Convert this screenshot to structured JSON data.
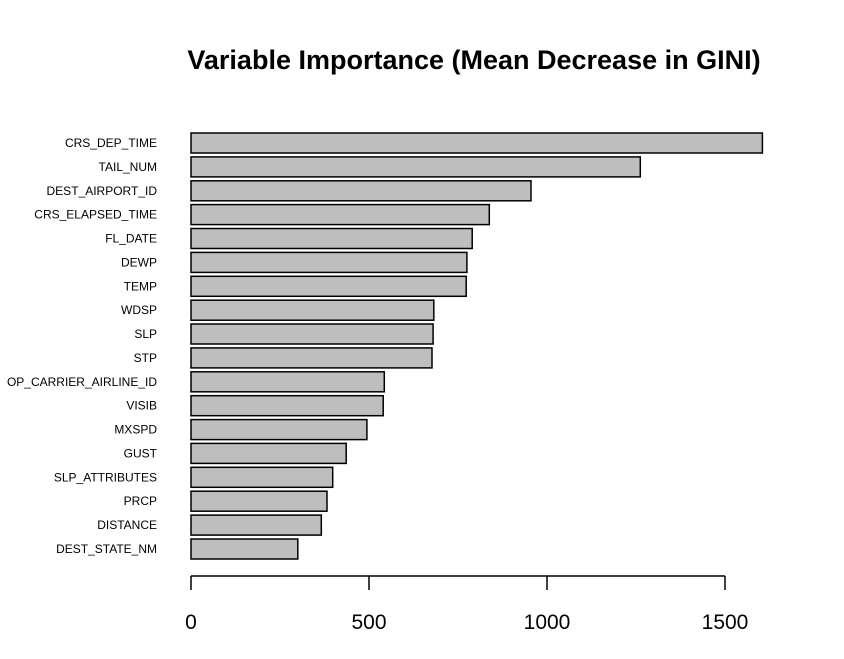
{
  "chart_data": {
    "type": "bar",
    "orientation": "horizontal",
    "title": "Variable Importance (Mean Decrease in GINI)",
    "xlabel": "",
    "ylabel": "",
    "xlim": [
      0,
      1500
    ],
    "x_ticks": [
      0,
      500,
      1000,
      1500
    ],
    "grid": false,
    "bar_color": "#bebebe",
    "categories": [
      "CRS_DEP_TIME",
      "TAIL_NUM",
      "DEST_AIRPORT_ID",
      "CRS_ELAPSED_TIME",
      "FL_DATE",
      "DEWP",
      "TEMP",
      "WDSP",
      "SLP",
      "STP",
      "OP_CARRIER_AIRLINE_ID",
      "VISIB",
      "MXSPD",
      "GUST",
      "SLP_ATTRIBUTES",
      "PRCP",
      "DISTANCE",
      "DEST_STATE_NM"
    ],
    "values": [
      1605,
      1262,
      955,
      838,
      790,
      775,
      773,
      682,
      680,
      677,
      543,
      540,
      494,
      436,
      398,
      382,
      366,
      300
    ]
  }
}
